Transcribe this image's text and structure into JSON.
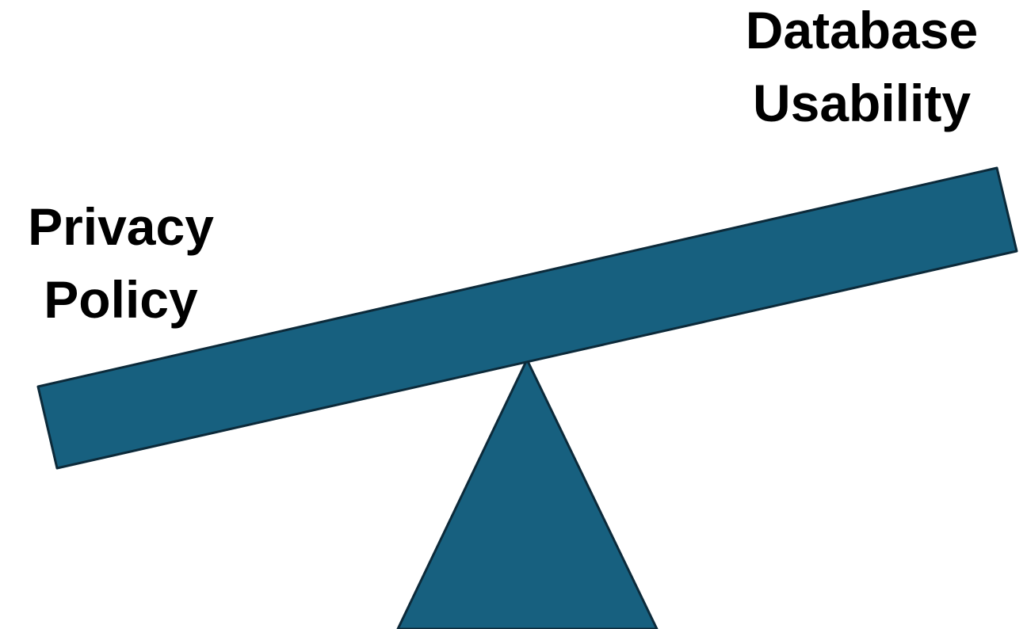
{
  "colors": {
    "fill": "#17607f",
    "stroke": "#0c2a3a",
    "text": "#000000",
    "background": "#ffffff"
  },
  "left_label": {
    "line1": "Privacy",
    "line2": "Policy"
  },
  "right_label": {
    "line1": "Database",
    "line2": "Usability"
  }
}
